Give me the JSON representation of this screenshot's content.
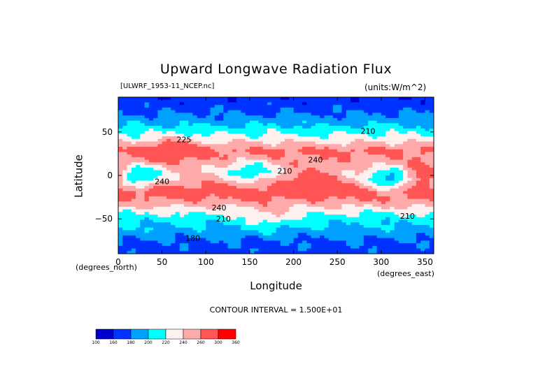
{
  "chart_data": {
    "type": "heatmap",
    "title": "Upward Longwave Radiation Flux",
    "file_label": "[ULWRF_1953-11_NCEP.nc]",
    "units_label": "(units:W/m^2)",
    "xlabel": "Longitude",
    "ylabel": "Latitude",
    "x_unit_label": "(degrees_east)",
    "y_unit_label": "(degrees_north)",
    "xlim": [
      0,
      360
    ],
    "ylim": [
      -90,
      90
    ],
    "x_ticks": [
      0,
      50,
      100,
      150,
      200,
      250,
      300,
      350
    ],
    "y_ticks": [
      -50,
      0,
      50
    ],
    "contour_interval_text": "CONTOUR INTERVAL = 1.500E+01",
    "contour_labels": [
      {
        "text": "210",
        "lon": 285,
        "lat": 48
      },
      {
        "text": "225",
        "lon": 75,
        "lat": 38
      },
      {
        "text": "240",
        "lon": 225,
        "lat": 15
      },
      {
        "text": "210",
        "lon": 190,
        "lat": 2
      },
      {
        "text": "240",
        "lon": 50,
        "lat": -10
      },
      {
        "text": "240",
        "lon": 115,
        "lat": -40
      },
      {
        "text": "210",
        "lon": 120,
        "lat": -53
      },
      {
        "text": "210",
        "lon": 330,
        "lat": -50
      },
      {
        "text": "180",
        "lon": 85,
        "lat": -75
      }
    ],
    "colorbar": {
      "levels": [
        "100",
        "160",
        "180",
        "200",
        "220",
        "240",
        "260",
        "300",
        "360"
      ],
      "colors": [
        "#0000cc",
        "#0033ff",
        "#00a0ff",
        "#00ffff",
        "#fff0f0",
        "#ffaaaa",
        "#ff5555",
        "#ff0000"
      ]
    },
    "band_profile": [
      {
        "lat": 90,
        "value": 165
      },
      {
        "lat": 75,
        "value": 175
      },
      {
        "lat": 60,
        "value": 195
      },
      {
        "lat": 50,
        "value": 215
      },
      {
        "lat": 40,
        "value": 235
      },
      {
        "lat": 28,
        "value": 265
      },
      {
        "lat": 18,
        "value": 255
      },
      {
        "lat": 5,
        "value": 240
      },
      {
        "lat": -5,
        "value": 250
      },
      {
        "lat": -20,
        "value": 275
      },
      {
        "lat": -32,
        "value": 250
      },
      {
        "lat": -42,
        "value": 225
      },
      {
        "lat": -52,
        "value": 205
      },
      {
        "lat": -62,
        "value": 195
      },
      {
        "lat": -75,
        "value": 178
      },
      {
        "lat": -90,
        "value": 170
      }
    ],
    "anomalies": [
      {
        "lon": 20,
        "lat": -2,
        "value": 190
      },
      {
        "lon": 150,
        "lat": 5,
        "value": 200
      },
      {
        "lon": 310,
        "lat": -5,
        "value": 190
      },
      {
        "lon": 60,
        "lat": 30,
        "value": 295
      },
      {
        "lon": 220,
        "lat": -5,
        "value": 290
      },
      {
        "lon": 350,
        "lat": 0,
        "value": 290
      },
      {
        "lon": 170,
        "lat": -50,
        "value": 235
      }
    ]
  }
}
